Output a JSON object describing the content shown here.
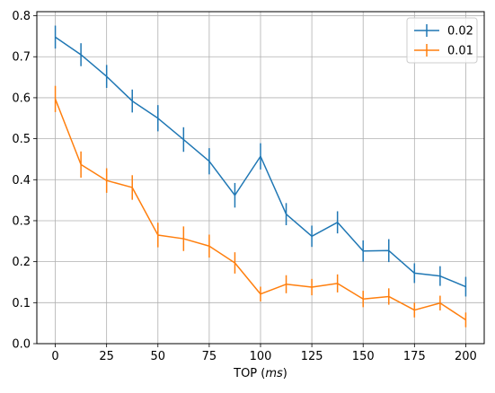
{
  "chart_data": {
    "type": "line",
    "xlabel_prefix": "TOP (",
    "xlabel_unit": "ms",
    "xlabel_suffix": ")",
    "ylabel": "",
    "xlim": [
      -9,
      209
    ],
    "ylim": [
      0.0,
      0.81
    ],
    "x_ticks": [
      0,
      25,
      50,
      75,
      100,
      125,
      150,
      175,
      200
    ],
    "y_ticks": [
      0.0,
      0.1,
      0.2,
      0.3,
      0.4,
      0.5,
      0.6,
      0.7,
      0.8
    ],
    "y_tick_labels": [
      "0.0",
      "0.1",
      "0.2",
      "0.3",
      "0.4",
      "0.5",
      "0.6",
      "0.7",
      "0.8"
    ],
    "grid": true,
    "legend_position": "top-right",
    "x": [
      0,
      12.5,
      25,
      37.5,
      50,
      62.5,
      75,
      87.5,
      100,
      112.5,
      125,
      137.5,
      150,
      162.5,
      175,
      187.5,
      200
    ],
    "series": [
      {
        "name": "0.02",
        "color": "#1f77b4",
        "values": [
          0.748,
          0.705,
          0.652,
          0.592,
          0.55,
          0.498,
          0.445,
          0.362,
          0.457,
          0.316,
          0.262,
          0.296,
          0.226,
          0.227,
          0.172,
          0.165,
          0.139
        ],
        "errors": [
          0.028,
          0.028,
          0.028,
          0.028,
          0.032,
          0.03,
          0.032,
          0.03,
          0.032,
          0.027,
          0.026,
          0.027,
          0.026,
          0.028,
          0.024,
          0.024,
          0.024
        ]
      },
      {
        "name": "0.01",
        "color": "#ff7f0e",
        "values": [
          0.597,
          0.437,
          0.398,
          0.381,
          0.265,
          0.256,
          0.238,
          0.197,
          0.121,
          0.145,
          0.138,
          0.147,
          0.109,
          0.115,
          0.082,
          0.099,
          0.058
        ],
        "errors": [
          0.032,
          0.032,
          0.03,
          0.03,
          0.03,
          0.03,
          0.028,
          0.026,
          0.018,
          0.022,
          0.02,
          0.022,
          0.02,
          0.02,
          0.018,
          0.018,
          0.018
        ]
      }
    ]
  }
}
